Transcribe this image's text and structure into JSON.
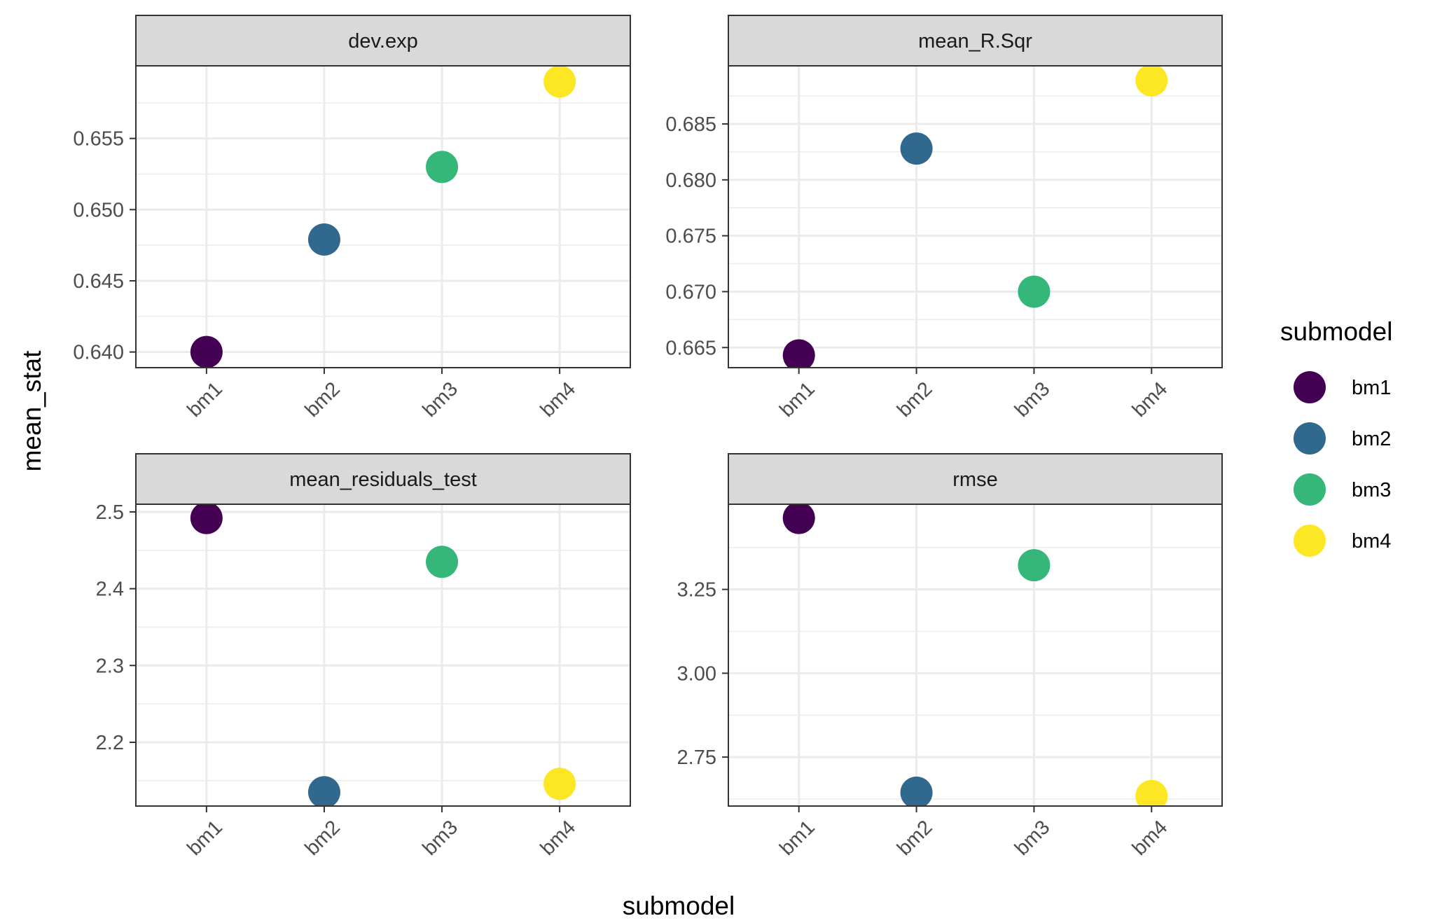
{
  "chart_data": {
    "type": "scatter",
    "xlabel": "submodel",
    "ylabel": "mean_stat",
    "categories": [
      "bm1",
      "bm2",
      "bm3",
      "bm4"
    ],
    "colors": {
      "bm1": "#440154",
      "bm2": "#31688E",
      "bm3": "#35B779",
      "bm4": "#FDE725"
    },
    "legend": {
      "title": "submodel",
      "position": "right",
      "items": [
        {
          "label": "bm1",
          "color": "#440154"
        },
        {
          "label": "bm2",
          "color": "#31688E"
        },
        {
          "label": "bm3",
          "color": "#35B779"
        },
        {
          "label": "bm4",
          "color": "#FDE725"
        }
      ]
    },
    "grid": true,
    "panels": [
      {
        "title": "dev.exp",
        "ylim": [
          0.6389,
          0.6601
        ],
        "yticks": [
          0.64,
          0.645,
          0.65,
          0.655
        ],
        "ytick_labels": [
          "0.640",
          "0.645",
          "0.650",
          "0.655"
        ],
        "values": [
          0.64,
          0.6479,
          0.653,
          0.659
        ]
      },
      {
        "title": "mean_R.Sqr",
        "ylim": [
          0.6632,
          0.6902
        ],
        "yticks": [
          0.665,
          0.67,
          0.675,
          0.68,
          0.685
        ],
        "ytick_labels": [
          "0.665",
          "0.670",
          "0.675",
          "0.680",
          "0.685"
        ],
        "values": [
          0.6643,
          0.6828,
          0.67,
          0.6889
        ]
      },
      {
        "title": "mean_residuals_test",
        "ylim": [
          2.117,
          2.51
        ],
        "yticks": [
          2.2,
          2.3,
          2.4,
          2.5
        ],
        "ytick_labels": [
          "2.2",
          "2.3",
          "2.4",
          "2.5"
        ],
        "values": [
          2.492,
          2.135,
          2.435,
          2.146
        ]
      },
      {
        "title": "rmse",
        "ylim": [
          2.604,
          3.504
        ],
        "yticks": [
          2.75,
          3.0,
          3.25
        ],
        "ytick_labels": [
          "2.75",
          "3.00",
          "3.25"
        ],
        "values": [
          3.463,
          2.644,
          3.322,
          2.634
        ]
      }
    ]
  }
}
